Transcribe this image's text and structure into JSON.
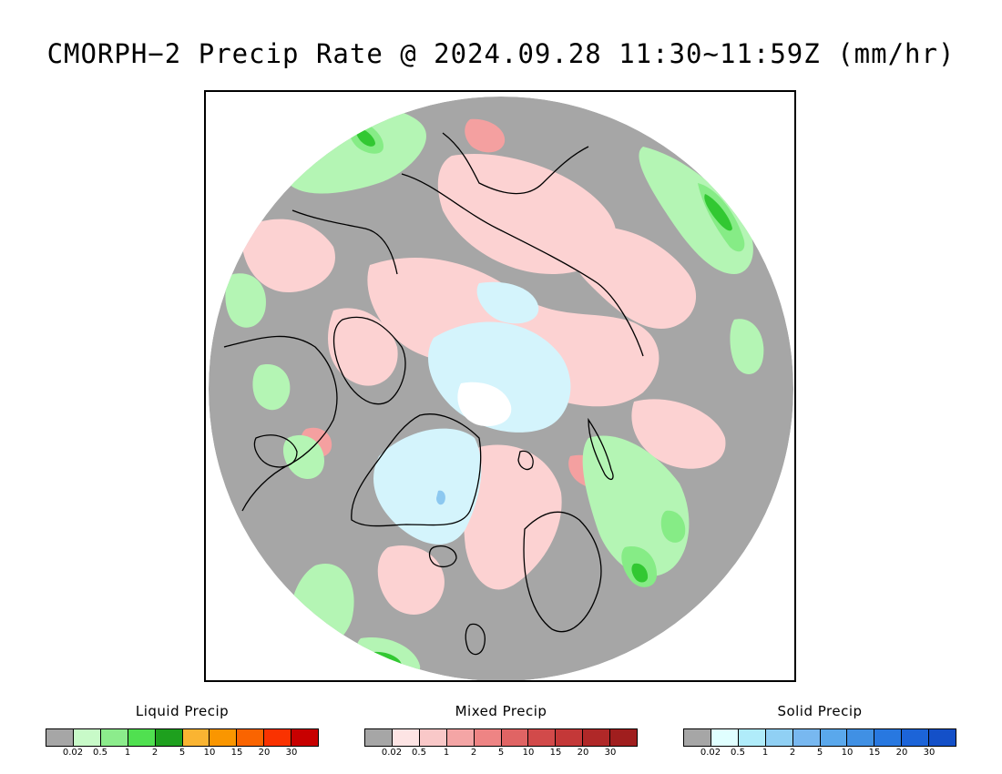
{
  "title": "CMORPH−2 Precip Rate @ 2024.09.28 11:30~11:59Z (mm/hr)",
  "colors": {
    "no_precip": "#a6a6a6",
    "liquid_light": "#b4f5b4",
    "liquid_mid": "#86ec86",
    "liquid_strong": "#32c832",
    "mixed_light": "#fcd2d2",
    "mixed_mid": "#f4a0a0",
    "solid_light": "#d4f4fc",
    "solid_white": "#ffffff",
    "solid_mid": "#8cc8f0",
    "coast": "#000000"
  },
  "legend": [
    {
      "title": "Liquid Precip",
      "swatches": [
        "#a6a6a6",
        "#c8fac8",
        "#8cec8c",
        "#50e050",
        "#1ea01e",
        "#fab432",
        "#fa9600",
        "#fa6400",
        "#fa3200",
        "#c80000"
      ],
      "ticks": [
        "0.02",
        "0.5",
        "1",
        "2",
        "5",
        "10",
        "15",
        "20",
        "30"
      ]
    },
    {
      "title": "Mixed Precip",
      "swatches": [
        "#a6a6a6",
        "#fde4e4",
        "#f9c8c8",
        "#f4a5a5",
        "#ee8484",
        "#e06464",
        "#d24a4a",
        "#c43838",
        "#b02828",
        "#a01e1e"
      ],
      "ticks": [
        "0.02",
        "0.5",
        "1",
        "2",
        "5",
        "10",
        "15",
        "20",
        "30"
      ]
    },
    {
      "title": "Solid Precip",
      "swatches": [
        "#a6a6a6",
        "#e0ffff",
        "#b0ecfa",
        "#90d0f4",
        "#78b8f0",
        "#5aa8ec",
        "#4090e4",
        "#2878e0",
        "#1c64d8",
        "#1450c8"
      ],
      "ticks": [
        "0.02",
        "0.5",
        "1",
        "2",
        "5",
        "10",
        "15",
        "20",
        "30"
      ]
    }
  ]
}
